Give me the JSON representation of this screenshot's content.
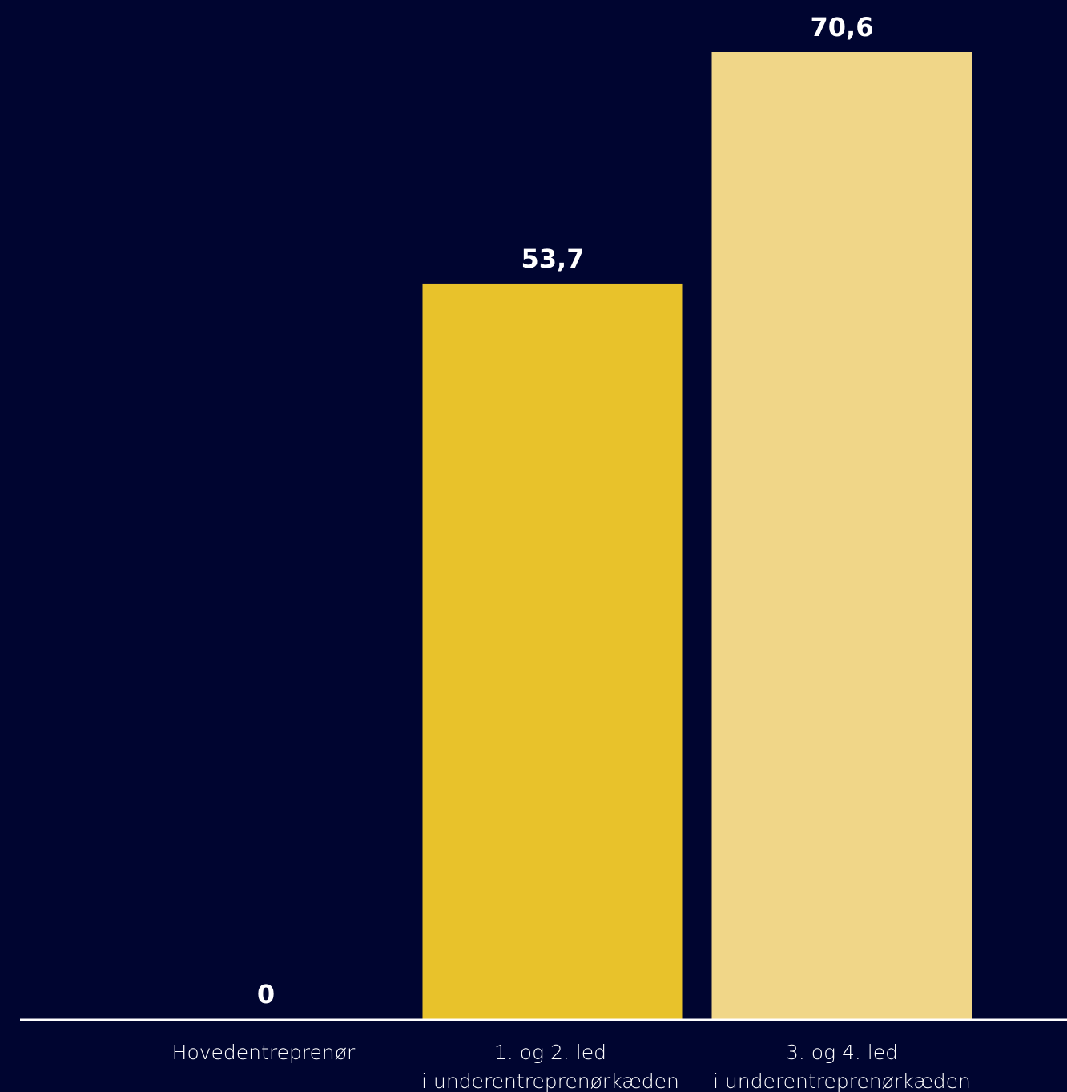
{
  "chart_data": {
    "type": "bar",
    "categories": [
      [
        "Hovedentreprenør"
      ],
      [
        "1. og 2. led",
        "i underentreprenørkæden"
      ],
      [
        "3. og 4. led",
        "i underentreprenørkæden"
      ]
    ],
    "values": [
      0,
      53.7,
      70.6
    ],
    "value_labels": [
      "0",
      "53,7",
      "70,6"
    ],
    "bar_colors": [
      "#e8c22b",
      "#e8c22b",
      "#f0d688"
    ],
    "background_color": "#000530",
    "baseline_color": "#ffffff",
    "ylim": [
      0,
      70.6
    ],
    "grid": false,
    "legend": "none"
  }
}
